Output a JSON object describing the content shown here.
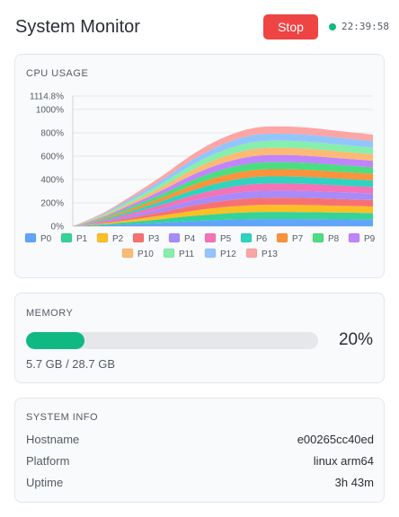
{
  "header": {
    "title": "System Monitor",
    "stop_label": "Stop",
    "status_color": "#10b981",
    "clock": "22:39:58"
  },
  "cpu": {
    "title": "CPU USAGE",
    "chart_data": {
      "type": "area",
      "stacked": true,
      "ylim": [
        0,
        1114.8
      ],
      "y_ticks": [
        "0%",
        "200%",
        "400%",
        "600%",
        "800%",
        "1000%",
        "1114.8%"
      ],
      "y_tick_values": [
        0,
        200,
        400,
        600,
        800,
        1000,
        1114.8
      ],
      "grid": true,
      "legend_position": "bottom",
      "x": [
        0,
        1,
        2,
        3,
        4,
        5,
        6,
        7,
        8,
        9,
        10
      ],
      "series": [
        {
          "name": "P0",
          "color": "#60a5fa",
          "values": [
            0,
            8,
            19,
            31,
            44,
            54,
            60,
            61,
            60,
            58,
            56
          ]
        },
        {
          "name": "P1",
          "color": "#34d399",
          "values": [
            0,
            8,
            19,
            31,
            44,
            54,
            60,
            61,
            60,
            58,
            56
          ]
        },
        {
          "name": "P2",
          "color": "#fbbf24",
          "values": [
            0,
            8,
            19,
            31,
            44,
            54,
            60,
            61,
            60,
            58,
            56
          ]
        },
        {
          "name": "P3",
          "color": "#f87171",
          "values": [
            0,
            8,
            19,
            31,
            44,
            54,
            60,
            61,
            60,
            58,
            56
          ]
        },
        {
          "name": "P4",
          "color": "#a78bfa",
          "values": [
            0,
            8,
            19,
            31,
            44,
            54,
            60,
            61,
            60,
            58,
            56
          ]
        },
        {
          "name": "P5",
          "color": "#f472b6",
          "values": [
            0,
            8,
            19,
            31,
            44,
            54,
            60,
            61,
            60,
            58,
            56
          ]
        },
        {
          "name": "P6",
          "color": "#2dd4bf",
          "values": [
            0,
            8,
            19,
            31,
            44,
            54,
            60,
            61,
            60,
            58,
            56
          ]
        },
        {
          "name": "P7",
          "color": "#fb923c",
          "values": [
            0,
            8,
            19,
            31,
            44,
            54,
            60,
            61,
            60,
            58,
            56
          ]
        },
        {
          "name": "P8",
          "color": "#4ade80",
          "values": [
            0,
            8,
            19,
            31,
            44,
            54,
            60,
            61,
            60,
            58,
            56
          ]
        },
        {
          "name": "P9",
          "color": "#c084fc",
          "values": [
            0,
            8,
            19,
            31,
            44,
            54,
            60,
            61,
            60,
            58,
            56
          ]
        },
        {
          "name": "P10",
          "color": "#fdba74",
          "values": [
            0,
            8,
            19,
            31,
            44,
            54,
            60,
            61,
            60,
            58,
            56
          ]
        },
        {
          "name": "P11",
          "color": "#86efac",
          "values": [
            0,
            8,
            19,
            31,
            44,
            54,
            60,
            61,
            60,
            58,
            56
          ]
        },
        {
          "name": "P12",
          "color": "#93c5fd",
          "values": [
            0,
            8,
            19,
            31,
            44,
            54,
            60,
            61,
            60,
            58,
            56
          ]
        },
        {
          "name": "P13",
          "color": "#fca5a5",
          "values": [
            0,
            8,
            19,
            31,
            44,
            54,
            60,
            61,
            60,
            58,
            56
          ]
        }
      ]
    }
  },
  "memory": {
    "title": "MEMORY",
    "percent": 20,
    "percent_label": "20%",
    "detail": "5.7 GB / 28.7 GB",
    "bar_color": "#10b981"
  },
  "system_info": {
    "title": "SYSTEM INFO",
    "rows": [
      {
        "key": "Hostname",
        "value": "e00265cc40ed"
      },
      {
        "key": "Platform",
        "value": "linux arm64"
      },
      {
        "key": "Uptime",
        "value": "3h 43m"
      }
    ]
  }
}
